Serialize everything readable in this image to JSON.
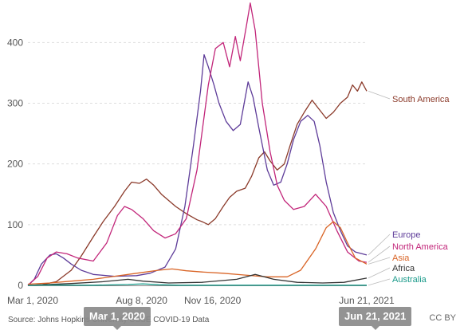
{
  "chart_data": {
    "type": "line",
    "x_range": [
      "2020-03-01",
      "2021-06-21"
    ],
    "ylim": [
      0,
      470
    ],
    "y_ticks": [
      0,
      100,
      200,
      300,
      400
    ],
    "x_ticks": [
      {
        "date": "2020-03-01",
        "label": "Mar 1, 2020"
      },
      {
        "date": "2020-08-08",
        "label": "Aug 8, 2020"
      },
      {
        "date": "2020-11-16",
        "label": "Nov 16, 2020"
      },
      {
        "date": "2021-06-21",
        "label": "Jun 21, 2021"
      }
    ],
    "grid": true,
    "series": [
      {
        "name": "South America",
        "color": "#8b3a2a",
        "points": [
          [
            "2020-03-01",
            0
          ],
          [
            "2020-03-20",
            1
          ],
          [
            "2020-04-10",
            6
          ],
          [
            "2020-05-01",
            25
          ],
          [
            "2020-05-15",
            48
          ],
          [
            "2020-06-01",
            80
          ],
          [
            "2020-06-15",
            105
          ],
          [
            "2020-07-01",
            130
          ],
          [
            "2020-07-15",
            155
          ],
          [
            "2020-07-25",
            170
          ],
          [
            "2020-08-05",
            168
          ],
          [
            "2020-08-15",
            175
          ],
          [
            "2020-08-25",
            165
          ],
          [
            "2020-09-05",
            150
          ],
          [
            "2020-09-15",
            140
          ],
          [
            "2020-09-25",
            130
          ],
          [
            "2020-10-10",
            118
          ],
          [
            "2020-10-25",
            108
          ],
          [
            "2020-11-01",
            105
          ],
          [
            "2020-11-10",
            100
          ],
          [
            "2020-11-20",
            110
          ],
          [
            "2020-12-01",
            130
          ],
          [
            "2020-12-10",
            145
          ],
          [
            "2020-12-20",
            155
          ],
          [
            "2021-01-01",
            160
          ],
          [
            "2021-01-10",
            180
          ],
          [
            "2021-01-20",
            210
          ],
          [
            "2021-01-28",
            220
          ],
          [
            "2021-02-05",
            205
          ],
          [
            "2021-02-15",
            190
          ],
          [
            "2021-02-25",
            200
          ],
          [
            "2021-03-05",
            230
          ],
          [
            "2021-03-15",
            265
          ],
          [
            "2021-03-25",
            285
          ],
          [
            "2021-04-05",
            305
          ],
          [
            "2021-04-15",
            290
          ],
          [
            "2021-04-25",
            275
          ],
          [
            "2021-05-05",
            285
          ],
          [
            "2021-05-15",
            300
          ],
          [
            "2021-05-25",
            310
          ],
          [
            "2021-06-01",
            330
          ],
          [
            "2021-06-08",
            320
          ],
          [
            "2021-06-14",
            335
          ],
          [
            "2021-06-21",
            320
          ]
        ]
      },
      {
        "name": "Europe",
        "color": "#5e3c99",
        "points": [
          [
            "2020-03-01",
            0
          ],
          [
            "2020-03-10",
            10
          ],
          [
            "2020-03-20",
            35
          ],
          [
            "2020-04-01",
            50
          ],
          [
            "2020-04-10",
            52
          ],
          [
            "2020-04-20",
            45
          ],
          [
            "2020-05-01",
            35
          ],
          [
            "2020-05-15",
            25
          ],
          [
            "2020-06-01",
            18
          ],
          [
            "2020-07-01",
            15
          ],
          [
            "2020-08-01",
            16
          ],
          [
            "2020-08-20",
            20
          ],
          [
            "2020-09-10",
            30
          ],
          [
            "2020-09-25",
            60
          ],
          [
            "2020-10-08",
            130
          ],
          [
            "2020-10-20",
            230
          ],
          [
            "2020-10-30",
            320
          ],
          [
            "2020-11-04",
            380
          ],
          [
            "2020-11-10",
            360
          ],
          [
            "2020-11-18",
            330
          ],
          [
            "2020-11-25",
            300
          ],
          [
            "2020-12-05",
            270
          ],
          [
            "2020-12-15",
            255
          ],
          [
            "2020-12-25",
            265
          ],
          [
            "2021-01-05",
            335
          ],
          [
            "2021-01-12",
            310
          ],
          [
            "2021-01-20",
            260
          ],
          [
            "2021-02-01",
            190
          ],
          [
            "2021-02-10",
            165
          ],
          [
            "2021-02-20",
            170
          ],
          [
            "2021-03-01",
            200
          ],
          [
            "2021-03-10",
            240
          ],
          [
            "2021-03-20",
            270
          ],
          [
            "2021-03-30",
            280
          ],
          [
            "2021-04-08",
            270
          ],
          [
            "2021-04-16",
            230
          ],
          [
            "2021-04-25",
            170
          ],
          [
            "2021-05-05",
            120
          ],
          [
            "2021-05-15",
            90
          ],
          [
            "2021-05-25",
            65
          ],
          [
            "2021-06-05",
            55
          ],
          [
            "2021-06-21",
            50
          ]
        ]
      },
      {
        "name": "North America",
        "color": "#c2267a",
        "points": [
          [
            "2020-03-01",
            0
          ],
          [
            "2020-03-15",
            15
          ],
          [
            "2020-03-28",
            45
          ],
          [
            "2020-04-10",
            55
          ],
          [
            "2020-04-25",
            52
          ],
          [
            "2020-05-10",
            45
          ],
          [
            "2020-06-01",
            40
          ],
          [
            "2020-06-20",
            70
          ],
          [
            "2020-07-05",
            115
          ],
          [
            "2020-07-15",
            130
          ],
          [
            "2020-07-25",
            125
          ],
          [
            "2020-08-10",
            110
          ],
          [
            "2020-08-25",
            90
          ],
          [
            "2020-09-10",
            78
          ],
          [
            "2020-09-25",
            85
          ],
          [
            "2020-10-10",
            110
          ],
          [
            "2020-10-25",
            190
          ],
          [
            "2020-11-10",
            330
          ],
          [
            "2020-11-20",
            390
          ],
          [
            "2020-12-01",
            400
          ],
          [
            "2020-12-10",
            360
          ],
          [
            "2020-12-18",
            410
          ],
          [
            "2020-12-25",
            370
          ],
          [
            "2021-01-03",
            430
          ],
          [
            "2021-01-08",
            465
          ],
          [
            "2021-01-15",
            420
          ],
          [
            "2021-01-25",
            300
          ],
          [
            "2021-02-05",
            220
          ],
          [
            "2021-02-15",
            165
          ],
          [
            "2021-02-25",
            140
          ],
          [
            "2021-03-10",
            125
          ],
          [
            "2021-03-25",
            130
          ],
          [
            "2021-04-10",
            150
          ],
          [
            "2021-04-25",
            130
          ],
          [
            "2021-05-10",
            90
          ],
          [
            "2021-05-25",
            55
          ],
          [
            "2021-06-10",
            40
          ],
          [
            "2021-06-21",
            38
          ]
        ]
      },
      {
        "name": "Asia",
        "color": "#d96527",
        "points": [
          [
            "2020-03-01",
            2
          ],
          [
            "2020-04-01",
            4
          ],
          [
            "2020-05-01",
            7
          ],
          [
            "2020-06-01",
            10
          ],
          [
            "2020-07-01",
            15
          ],
          [
            "2020-08-01",
            20
          ],
          [
            "2020-09-01",
            25
          ],
          [
            "2020-09-20",
            27
          ],
          [
            "2020-10-10",
            24
          ],
          [
            "2020-11-01",
            22
          ],
          [
            "2020-12-01",
            20
          ],
          [
            "2021-01-01",
            17
          ],
          [
            "2021-02-01",
            14
          ],
          [
            "2021-03-01",
            14
          ],
          [
            "2021-03-20",
            25
          ],
          [
            "2021-04-10",
            60
          ],
          [
            "2021-04-25",
            95
          ],
          [
            "2021-05-05",
            105
          ],
          [
            "2021-05-15",
            95
          ],
          [
            "2021-05-25",
            70
          ],
          [
            "2021-06-05",
            45
          ],
          [
            "2021-06-21",
            35
          ]
        ]
      },
      {
        "name": "Africa",
        "color": "#333333",
        "points": [
          [
            "2020-03-01",
            0
          ],
          [
            "2020-05-01",
            3
          ],
          [
            "2020-06-15",
            6
          ],
          [
            "2020-07-20",
            10
          ],
          [
            "2020-08-10",
            7
          ],
          [
            "2020-09-15",
            4
          ],
          [
            "2020-11-01",
            5
          ],
          [
            "2020-12-20",
            10
          ],
          [
            "2021-01-15",
            18
          ],
          [
            "2021-02-10",
            10
          ],
          [
            "2021-03-15",
            5
          ],
          [
            "2021-04-20",
            4
          ],
          [
            "2021-05-20",
            5
          ],
          [
            "2021-06-21",
            12
          ]
        ]
      },
      {
        "name": "Australia",
        "color": "#1a9a8a",
        "points": [
          [
            "2020-03-01",
            0
          ],
          [
            "2020-04-01",
            0.6
          ],
          [
            "2020-06-01",
            0.3
          ],
          [
            "2020-07-20",
            1.5
          ],
          [
            "2020-08-10",
            2.5
          ],
          [
            "2020-09-01",
            1
          ],
          [
            "2020-10-01",
            0.3
          ],
          [
            "2021-06-21",
            0.2
          ]
        ]
      }
    ]
  },
  "source_text": "Source: Johns Hopkins University CSSE COVID-19 Data",
  "license_text": "CC BY",
  "markers": {
    "start": "Mar 1, 2020",
    "end": "Jun 21, 2021"
  }
}
